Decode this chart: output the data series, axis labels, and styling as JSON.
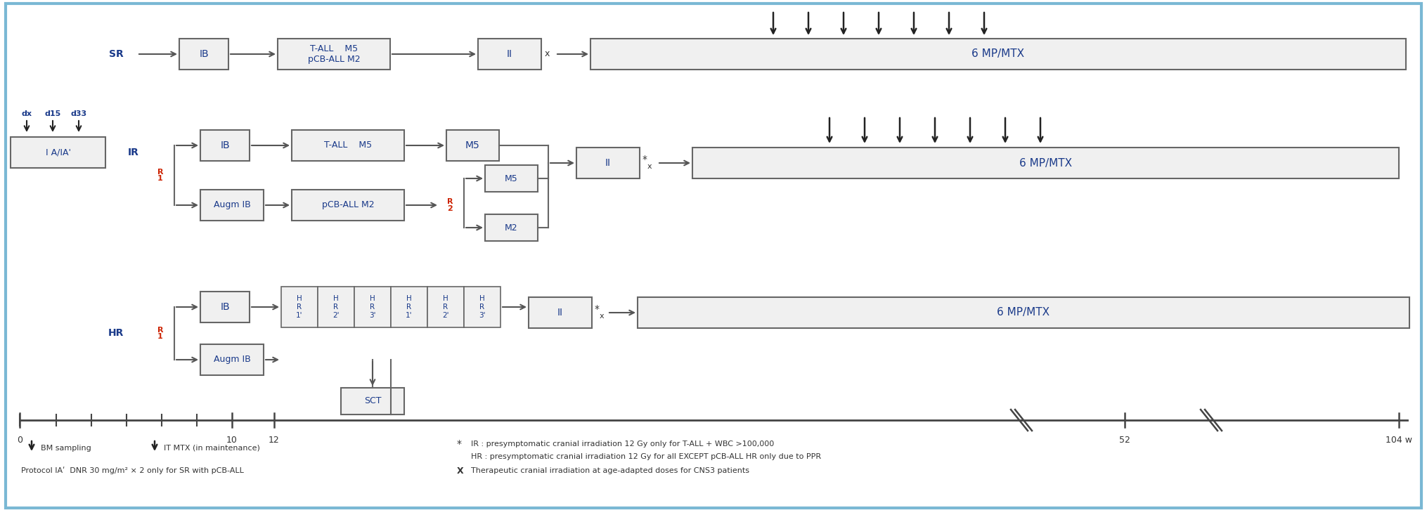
{
  "fig_width": 20.3,
  "fig_height": 7.43,
  "bg_color": "#ffffff",
  "border_color": "#7ab8d4",
  "box_face": "#f0f0f0",
  "box_edge": "#666666",
  "text_color": "#1a3a8a",
  "red_color": "#cc2200",
  "dark_color": "#333333",
  "arrow_color": "#555555",
  "sr_label": "SR",
  "ir_label": "IR",
  "hr_label": "HR",
  "r1_label": "R\n1",
  "r2_label": "R\n2",
  "ia_box_label": "I A/IA'",
  "ib_label": "IB",
  "augm_ib_label": "Augm IB",
  "tall_m5_label": "T-ALL    M5",
  "tall_m5_pcb_label": "T-ALL    M5\npCB-ALL M2",
  "pcb_all_m2_label": "pCB-ALL M2",
  "m5_label": "M5",
  "m2_label": "M2",
  "ii_label": "II",
  "sct_label": "SCT",
  "mpmtx_label": "6 MP/MTX",
  "dx_label": "dx",
  "d15_label": "d15",
  "d33_label": "d33",
  "tl_0": "0",
  "tl_10": "10",
  "tl_12": "12",
  "tl_52": "52",
  "tl_104": "104 w",
  "legend_bm": "BM sampling",
  "legend_it": "IT MTX (in maintenance)",
  "legend_ia_text": "Protocol IAʹ  DNR 30 mg/m² × 2 only for SR with pCB-ALL",
  "legend_star_ir": "IR : presymptomatic cranial irradiation 12 Gy only for T-ALL + WBC >100,000",
  "legend_star_hr": "HR : presymptomatic cranial irradiation 12 Gy for all EXCEPT pCB-ALL HR only due to PPR",
  "legend_x_text": "Therapeutic cranial irradiation at age-adapted doses for CNS3 patients"
}
